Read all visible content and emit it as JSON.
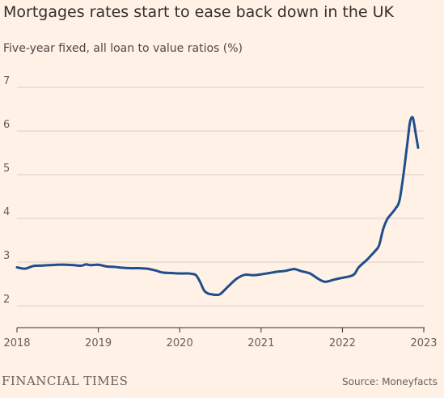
{
  "title": "Mortgages rates start to ease back down in the UK",
  "subtitle": "Five-year fixed, all loan to value ratios (%)",
  "footer": {
    "brand": "FINANCIAL TIMES",
    "source": "Source: Moneyfacts"
  },
  "colors": {
    "background": "#fff1e5",
    "line": "#1f4e8c",
    "grid": "#d9cfc6",
    "axis": "#33302e"
  },
  "chart_data": {
    "type": "line",
    "title": "Mortgages rates start to ease back down in the UK",
    "subtitle": "Five-year fixed, all loan to value ratios (%)",
    "xlabel": "",
    "ylabel": "",
    "xlim": [
      2018,
      2023
    ],
    "ylim": [
      2,
      7
    ],
    "x_ticks": [
      "2018",
      "2019",
      "2020",
      "2021",
      "2022",
      "2023"
    ],
    "y_ticks": [
      "2",
      "3",
      "4",
      "5",
      "6",
      "7"
    ],
    "grid": true,
    "series": [
      {
        "x": [
          2018.0,
          2018.1,
          2018.2,
          2018.3,
          2018.4,
          2018.5,
          2018.6,
          2018.7,
          2018.75,
          2018.8,
          2018.85,
          2018.9,
          2019.0,
          2019.1,
          2019.2,
          2019.3,
          2019.4,
          2019.5,
          2019.6,
          2019.7,
          2019.75,
          2019.8,
          2019.9,
          2020.0,
          2020.1,
          2020.15,
          2020.2,
          2020.25,
          2020.3,
          2020.35,
          2020.4,
          2020.45,
          2020.5,
          2020.6,
          2020.7,
          2020.8,
          2020.9,
          2021.0,
          2021.1,
          2021.2,
          2021.3,
          2021.4,
          2021.45,
          2021.5,
          2021.6,
          2021.7,
          2021.75,
          2021.8,
          2021.9,
          2022.0,
          2022.1,
          2022.15,
          2022.2,
          2022.3,
          2022.35,
          2022.4,
          2022.45,
          2022.5,
          2022.55,
          2022.6,
          2022.65,
          2022.7,
          2022.75,
          2022.8,
          2022.83,
          2022.86,
          2022.88,
          2022.9,
          2022.93
        ],
        "values": [
          2.88,
          2.85,
          2.91,
          2.92,
          2.93,
          2.94,
          2.94,
          2.93,
          2.92,
          2.92,
          2.95,
          2.93,
          2.94,
          2.9,
          2.89,
          2.87,
          2.86,
          2.86,
          2.85,
          2.81,
          2.78,
          2.76,
          2.75,
          2.74,
          2.74,
          2.73,
          2.7,
          2.55,
          2.35,
          2.28,
          2.26,
          2.25,
          2.27,
          2.45,
          2.62,
          2.71,
          2.7,
          2.72,
          2.75,
          2.78,
          2.8,
          2.84,
          2.82,
          2.79,
          2.74,
          2.62,
          2.57,
          2.55,
          2.6,
          2.64,
          2.68,
          2.73,
          2.88,
          3.05,
          3.15,
          3.25,
          3.38,
          3.75,
          3.98,
          4.1,
          4.22,
          4.4,
          5.0,
          5.75,
          6.2,
          6.32,
          6.18,
          5.95,
          5.62
        ]
      }
    ],
    "annotations": []
  }
}
